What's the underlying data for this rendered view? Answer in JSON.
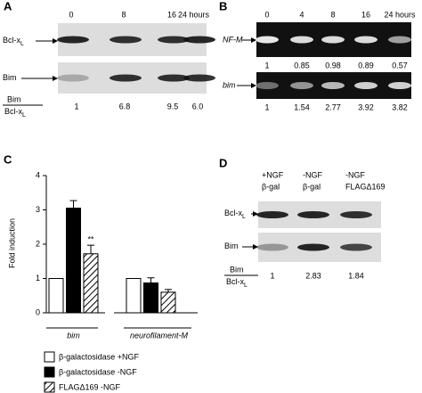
{
  "panel_a": {
    "label": "A",
    "times": [
      "0",
      "8",
      "16",
      "24 hours"
    ],
    "rows": [
      {
        "name": "Bcl-x",
        "sub": "L"
      },
      {
        "name": "Bim"
      }
    ],
    "ratio": {
      "numerator": "Bim",
      "denominator": "Bcl-x",
      "denominator_sub": "L",
      "values": [
        "1",
        "6.8",
        "9.5",
        "6.0"
      ]
    }
  },
  "panel_b": {
    "label": "B",
    "times": [
      "0",
      "4",
      "8",
      "16",
      "24 hours"
    ],
    "rows": [
      {
        "name": "NF-M",
        "values": [
          "1",
          "0.85",
          "0.98",
          "0.89",
          "0.57"
        ]
      },
      {
        "name": "bim",
        "values": [
          "1",
          "1.54",
          "2.77",
          "3.92",
          "3.82"
        ]
      }
    ]
  },
  "chart_data": {
    "type": "bar",
    "panel_label": "C",
    "ylabel": "Fold induction",
    "categories": [
      "bim",
      "neurofilament-M"
    ],
    "series": [
      {
        "name": "β-galactosidase +NGF",
        "color": "#ffffff",
        "values": [
          1,
          1
        ]
      },
      {
        "name": "β-galactosidase -NGF",
        "color": "#000000",
        "values": [
          3.05,
          0.87
        ],
        "errors": [
          0.22,
          0.15
        ]
      },
      {
        "name": "FLAGΔ169 -NGF",
        "color": "#ffffff",
        "hatch": true,
        "values": [
          1.72,
          0.6
        ],
        "errors": [
          0.25,
          0.08
        ]
      }
    ],
    "annotation": "**",
    "ylim": [
      0,
      4
    ],
    "yticks": [
      0,
      1,
      2,
      3,
      4
    ]
  },
  "panel_d": {
    "label": "D",
    "columns": [
      [
        "+NGF",
        "β-gal"
      ],
      [
        "-NGF",
        "β-gal"
      ],
      [
        "-NGF",
        "FLAGΔ169"
      ]
    ],
    "rows": [
      {
        "name": "Bcl-x",
        "sub": "L"
      },
      {
        "name": "Bim"
      }
    ],
    "ratio": {
      "numerator": "Bim",
      "denominator": "Bcl-x",
      "denominator_sub": "L",
      "values": [
        "1",
        "2.83",
        "1.84"
      ]
    }
  }
}
